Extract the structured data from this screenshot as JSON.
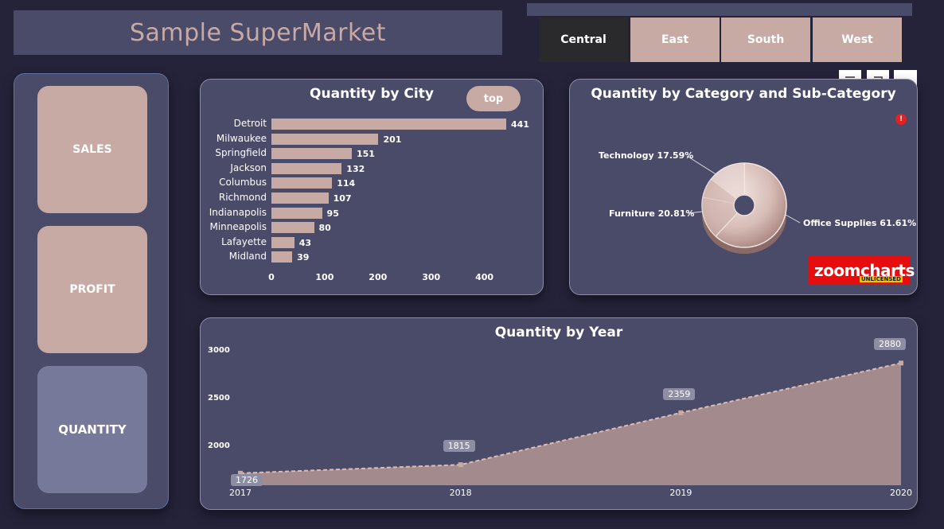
{
  "app": {
    "title": "Sample SuperMarket"
  },
  "regions": {
    "tabs": [
      "Central",
      "East",
      "South",
      "West"
    ],
    "selected": "Central"
  },
  "nav": {
    "items": [
      "SALES",
      "PROFIT",
      "QUANTITY"
    ],
    "selected": "QUANTITY"
  },
  "city_chart": {
    "title": "Quantity by City",
    "toggle_label": "top"
  },
  "category_chart": {
    "title": "Quantity by Category and Sub-Category",
    "labels": [
      "Technology 17.59%",
      "Furniture 20.81%",
      "Office Supplies 61.61%"
    ],
    "info_badge": "!",
    "logo": {
      "text": "zoomcharts",
      "sub": "UNLICENSED"
    }
  },
  "year_chart": {
    "title": "Quantity by Year"
  },
  "colors": {
    "accent": "#c8aaa4",
    "panel": "#4a4b69",
    "background": "#24233a",
    "area": "#a38a8c"
  },
  "chart_data": [
    {
      "type": "bar",
      "title": "Quantity by City",
      "categories": [
        "Detroit",
        "Milwaukee",
        "Springfield",
        "Jackson",
        "Columbus",
        "Richmond",
        "Indianapolis",
        "Minneapolis",
        "Lafayette",
        "Midland"
      ],
      "values": [
        441,
        201,
        151,
        132,
        114,
        107,
        95,
        80,
        43,
        39
      ],
      "xticks": [
        "0",
        "100",
        "200",
        "300",
        "400"
      ],
      "xlim": [
        0,
        441
      ]
    },
    {
      "type": "pie",
      "title": "Quantity by Category and Sub-Category",
      "categories": [
        "Technology",
        "Furniture",
        "Office Supplies"
      ],
      "values": [
        17.59,
        20.81,
        61.61
      ]
    },
    {
      "type": "area",
      "title": "Quantity by Year",
      "x": [
        "2017",
        "2018",
        "2019",
        "2020"
      ],
      "values": [
        1726,
        1815,
        2359,
        2880
      ],
      "yticks": [
        "2000",
        "2500",
        "3000"
      ],
      "ylim": [
        1600,
        3000
      ]
    }
  ]
}
